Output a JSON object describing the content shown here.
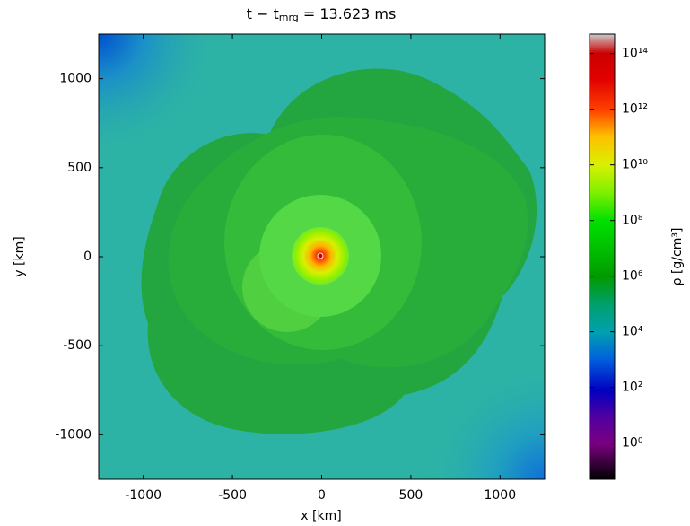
{
  "chart_data": {
    "type": "heatmap",
    "title": {
      "prefix": "t − t",
      "subscript": "mrg",
      "suffix": " = 13.623 ms"
    },
    "x_label": "x [km]",
    "y_label": "y [km]",
    "xlim": [
      -1250,
      1250
    ],
    "ylim": [
      -1250,
      1250
    ],
    "xticks": [
      -1000,
      -500,
      0,
      500,
      1000
    ],
    "yticks": [
      -1000,
      -500,
      0,
      500,
      1000
    ],
    "colorbar": {
      "label": "ρ [g/cm³]",
      "log_scale": true,
      "clim": [
        0.05,
        500000000000000.0
      ],
      "ticks": [
        {
          "value": 1,
          "label": "10⁰"
        },
        {
          "value": 100,
          "label": "10²"
        },
        {
          "value": 10000,
          "label": "10⁴"
        },
        {
          "value": 1000000,
          "label": "10⁶"
        },
        {
          "value": 100000000,
          "label": "10⁸"
        },
        {
          "value": 10000000000,
          "label": "10¹⁰"
        },
        {
          "value": 1000000000000,
          "label": "10¹²"
        },
        {
          "value": 100000000000000,
          "label": "10¹⁴"
        }
      ]
    }
  }
}
